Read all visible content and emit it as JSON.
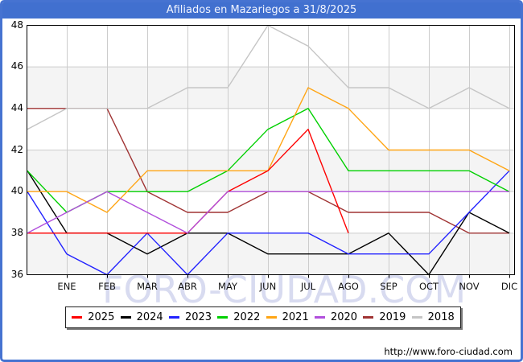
{
  "header": {
    "title": "Afiliados en Mazariegos a 31/8/2025"
  },
  "watermark": {
    "text": "FORO-CIUDAD.COM"
  },
  "footer": {
    "url": "http://www.foro-ciudad.com"
  },
  "colors": {
    "title_bar": "#4170cf",
    "page_border": "#4673d1",
    "gridline": "#cccccc",
    "band": "#f4f4f4",
    "plot_border": "#000000"
  },
  "chart_data": {
    "type": "line",
    "title": "Afiliados en Mazariegos a 31/8/2025",
    "categories": [
      "ENE",
      "FEB",
      "MAR",
      "ABR",
      "MAY",
      "JUN",
      "JUL",
      "AGO",
      "SEP",
      "OCT",
      "NOV",
      "DIC"
    ],
    "ylim": [
      36,
      48
    ],
    "yticks": [
      48,
      46,
      44,
      42,
      40,
      38,
      36
    ],
    "grid": true,
    "legend_position": "bottom",
    "note_axis_start": "each line begins at the left axis with the previous December value",
    "series": [
      {
        "name": "2025",
        "color": "#fe0000",
        "start_value": 38,
        "values": [
          38,
          38,
          38,
          38,
          40,
          41,
          43,
          38,
          null,
          null,
          null,
          null
        ]
      },
      {
        "name": "2024",
        "color": "#000000",
        "start_value": 41,
        "values": [
          38,
          38,
          37,
          38,
          38,
          37,
          37,
          37,
          38,
          36,
          39,
          38
        ]
      },
      {
        "name": "2023",
        "color": "#2222ff",
        "start_value": 40,
        "values": [
          37,
          36,
          38,
          36,
          38,
          38,
          38,
          37,
          37,
          37,
          39,
          41
        ]
      },
      {
        "name": "2022",
        "color": "#00d000",
        "start_value": 41,
        "values": [
          39,
          40,
          40,
          40,
          41,
          43,
          44,
          41,
          41,
          41,
          41,
          40
        ]
      },
      {
        "name": "2021",
        "color": "#ffa514",
        "start_value": 40,
        "values": [
          40,
          39,
          41,
          41,
          41,
          41,
          45,
          44,
          42,
          42,
          42,
          41
        ]
      },
      {
        "name": "2020",
        "color": "#b14fdc",
        "start_value": 38,
        "values": [
          39,
          40,
          39,
          38,
          40,
          40,
          40,
          40,
          40,
          40,
          40,
          40
        ]
      },
      {
        "name": "2019",
        "color": "#a03434",
        "start_value": 44,
        "values": [
          44,
          44,
          40,
          39,
          39,
          40,
          40,
          39,
          39,
          39,
          38,
          38
        ]
      },
      {
        "name": "2018",
        "color": "#c5c5c5",
        "start_value": 43,
        "values": [
          44,
          44,
          44,
          45,
          45,
          48,
          47,
          45,
          45,
          44,
          45,
          44
        ]
      }
    ]
  }
}
